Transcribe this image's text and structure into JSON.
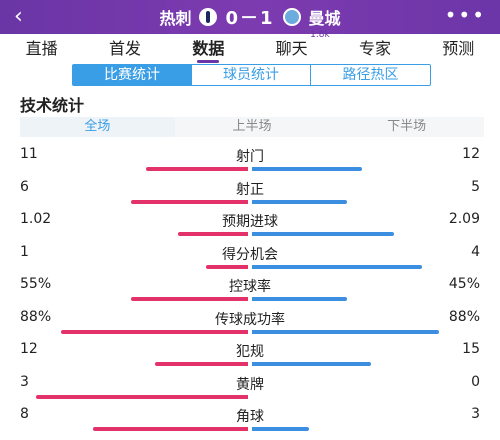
{
  "header": {
    "back_icon": "chevron-left-icon",
    "home_team": "热刺",
    "score": "0－1",
    "away_team": "曼城",
    "more_icon": "more-dots-icon",
    "more_label": "•••"
  },
  "tabs": [
    {
      "label": "直播"
    },
    {
      "label": "首发"
    },
    {
      "label": "数据",
      "active": true
    },
    {
      "label": "聊天",
      "badge": "1.8k"
    },
    {
      "label": "专家"
    },
    {
      "label": "预测"
    }
  ],
  "segments": [
    {
      "label": "比赛统计",
      "active": true
    },
    {
      "label": "球员统计"
    },
    {
      "label": "路径热区"
    }
  ],
  "section_title": "技术统计",
  "halves": [
    {
      "label": "全场",
      "active": true
    },
    {
      "label": "上半场"
    },
    {
      "label": "下半场"
    }
  ],
  "colors": {
    "home": "#e3316a",
    "away": "#3c8ee0",
    "accent": "#6a35a6",
    "tab_blue": "#3a9ee6"
  },
  "stats": [
    {
      "label": "射门",
      "home": "11",
      "away": "12",
      "home_frac": 0.48,
      "away_frac": 0.52
    },
    {
      "label": "射正",
      "home": "6",
      "away": "5",
      "home_frac": 0.55,
      "away_frac": 0.45
    },
    {
      "label": "预期进球",
      "home": "1.02",
      "away": "2.09",
      "home_frac": 0.33,
      "away_frac": 0.67
    },
    {
      "label": "得分机会",
      "home": "1",
      "away": "4",
      "home_frac": 0.2,
      "away_frac": 0.8
    },
    {
      "label": "控球率",
      "home": "55%",
      "away": "45%",
      "home_frac": 0.55,
      "away_frac": 0.45
    },
    {
      "label": "传球成功率",
      "home": "88%",
      "away": "88%",
      "home_frac": 0.88,
      "away_frac": 0.88
    },
    {
      "label": "犯规",
      "home": "12",
      "away": "15",
      "home_frac": 0.44,
      "away_frac": 0.56
    },
    {
      "label": "黄牌",
      "home": "3",
      "away": "0",
      "home_frac": 1.0,
      "away_frac": 0.0
    },
    {
      "label": "角球",
      "home": "8",
      "away": "3",
      "home_frac": 0.73,
      "away_frac": 0.27
    }
  ]
}
